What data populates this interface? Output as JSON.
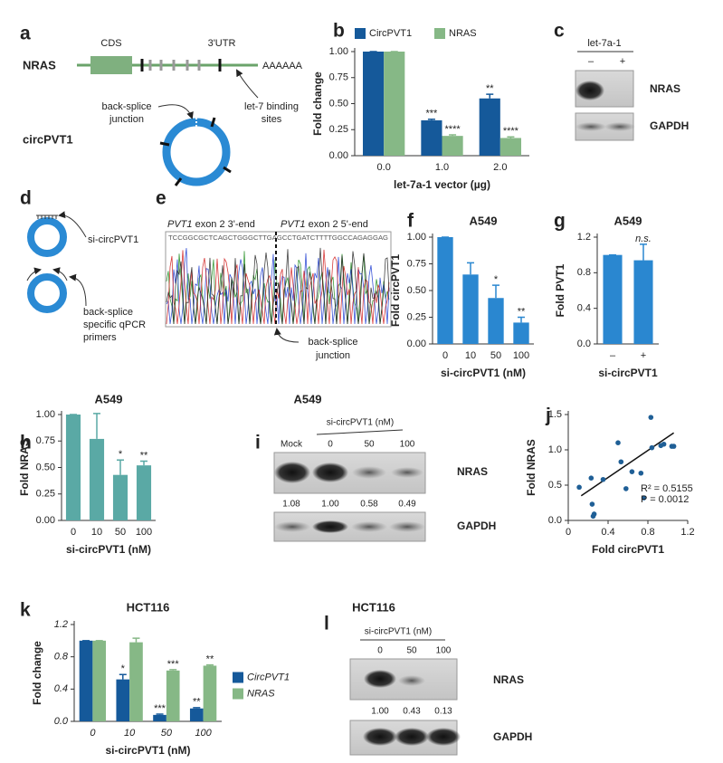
{
  "panels": {
    "a": {
      "label": "a",
      "gene": "NRAS",
      "cds": "CDS",
      "utr": "3'UTR",
      "polya": "AAAAAA",
      "circ": "circPVT1",
      "junction": [
        "back-splice",
        "junction"
      ],
      "sites": [
        "let-7 binding",
        "sites"
      ]
    },
    "c": {
      "label": "c",
      "treatment": "let-7a-1",
      "lanes": [
        "–",
        "+"
      ],
      "bands": [
        "NRAS",
        "GAPDH"
      ]
    },
    "d": {
      "label": "d",
      "sirna": "si-circPVT1",
      "primers": [
        "back-splice",
        "specific qPCR",
        "primers"
      ]
    },
    "e": {
      "label": "e",
      "left": [
        "PVT1",
        " exon 2 3'-end"
      ],
      "right": [
        "PVT1",
        " exon 2 5'-end"
      ],
      "sequence": "TCCGGCGCTCAGCTGGGCTTGAGCCTGATCTTTTGGCCAGAGGAG",
      "junction": [
        "back-splice",
        "junction"
      ]
    },
    "i": {
      "label": "i",
      "title": "A549",
      "treatment": "si-circPVT1 (nM)",
      "lanes": [
        "Mock",
        "0",
        "50",
        "100"
      ],
      "bands": [
        "NRAS",
        "GAPDH"
      ],
      "quant": [
        "1.08",
        "1.00",
        "0.58",
        "0.49"
      ]
    },
    "l": {
      "label": "l",
      "title": "HCT116",
      "treatment": "si-circPVT1 (nM)",
      "lanes": [
        "0",
        "50",
        "100"
      ],
      "bands": [
        "NRAS",
        "GAPDH"
      ],
      "quant": [
        "1.00",
        "0.43",
        "0.13"
      ]
    }
  },
  "chart_data": [
    {
      "type": "bar",
      "label": "b",
      "y_label": "Fold change",
      "x_label": "let-7a-1 vector (µg)",
      "legend": "top",
      "categories": [
        "0.0",
        "1.0",
        "2.0"
      ],
      "series": [
        {
          "name": "CircPVT1",
          "color": "#15599a",
          "values": [
            1,
            0.34,
            0.55
          ],
          "errors": [
            0,
            0.01,
            0.04
          ],
          "annotations": [
            null,
            "***",
            "**"
          ]
        },
        {
          "name": "NRAS",
          "color": "#86b886",
          "values": [
            1,
            0.19,
            0.17
          ],
          "errors": [
            0,
            0.01,
            0.01
          ],
          "annotations": [
            null,
            "****",
            "****"
          ]
        }
      ],
      "ylim": [
        0,
        1
      ],
      "yticks": [
        {
          "value": 0,
          "label": "0.00"
        },
        0.25,
        {
          "value": 0.5,
          "label": "0.50"
        },
        0.75,
        {
          "value": 1,
          "label": "1.00"
        }
      ]
    },
    {
      "type": "bar",
      "label": "f",
      "title": "A549",
      "y_label": "Fold circPVT1",
      "x_label": "si-circPVT1 (nM)",
      "color": "#2a87d0",
      "categories": [
        "0",
        "10",
        "50",
        "100"
      ],
      "values": [
        1,
        0.65,
        0.43,
        0.2
      ],
      "errors": [
        0,
        0.11,
        0.12,
        0.05
      ],
      "annotations": [
        null,
        null,
        "*",
        "**"
      ],
      "ylim": [
        0,
        1
      ],
      "yticks": [
        {
          "value": 0,
          "label": "0.00"
        },
        0.25,
        {
          "value": 0.5,
          "label": "0.50"
        },
        0.75,
        {
          "value": 1,
          "label": "1.00"
        }
      ]
    },
    {
      "type": "bar",
      "label": "g",
      "title": "A549",
      "y_label": "Fold PVT1",
      "x_label": "si-circPVT1",
      "color": "#2a87d0",
      "categories": [
        "–",
        "+"
      ],
      "values": [
        1,
        0.94
      ],
      "errors": [
        0,
        0.18
      ],
      "annotations": [
        null,
        "n.s."
      ],
      "ylim": [
        0,
        1.2
      ],
      "yticks": [
        {
          "value": 0,
          "label": "0.0"
        },
        0.4,
        0.8,
        1.2
      ]
    },
    {
      "type": "bar",
      "label": "h",
      "title": "A549",
      "y_label": "Fold NRAS",
      "x_label": "si-circPVT1 (nM)",
      "color": "#5aa9a5",
      "categories": [
        "0",
        "10",
        "50",
        "100"
      ],
      "values": [
        1,
        0.77,
        0.43,
        0.52
      ],
      "errors": [
        0,
        0.24,
        0.14,
        0.04
      ],
      "annotations": [
        null,
        null,
        "*",
        "**"
      ],
      "ylim": [
        0,
        1
      ],
      "yticks": [
        {
          "value": 0,
          "label": "0.00"
        },
        0.25,
        {
          "value": 0.5,
          "label": "0.50"
        },
        0.75,
        {
          "value": 1,
          "label": "1.00"
        }
      ]
    },
    {
      "type": "scatter",
      "label": "j",
      "y_label": "Fold NRAS",
      "x_label": "Fold circPVT1",
      "color": "#1f5f96",
      "x": [
        0.11,
        0.23,
        0.24,
        0.26,
        0.25,
        0.35,
        0.5,
        0.53,
        0.58,
        0.64,
        0.73,
        0.76,
        0.83,
        0.84,
        0.93,
        0.96,
        1.04,
        1.06
      ],
      "y": [
        0.47,
        0.6,
        0.23,
        0.09,
        0.06,
        0.58,
        1.1,
        0.83,
        0.45,
        0.69,
        0.67,
        0.32,
        1.46,
        1.03,
        1.06,
        1.08,
        1.05,
        1.05
      ],
      "trendline": {
        "x": [
          0.13,
          1.06
        ],
        "y": [
          0.35,
          1.24
        ]
      },
      "stats": [
        "R² = 0.5155",
        "P = 0.0012"
      ],
      "xlim": [
        0,
        1.2
      ],
      "xticks": [
        0,
        0.4,
        0.8,
        1.2
      ],
      "ylim": [
        0,
        1.5
      ],
      "yticks": [
        {
          "value": 0,
          "label": "0.0"
        },
        0.5,
        {
          "value": 1,
          "label": "1.0"
        },
        1.5
      ]
    },
    {
      "type": "bar",
      "label": "k",
      "title": "HCT116",
      "y_label": "Fold change",
      "x_label": "si-circPVT1 (nM)",
      "legend": "right",
      "italic_labels": true,
      "categories": [
        "0",
        "10",
        "50",
        "100"
      ],
      "series": [
        {
          "name": "CircPVT1",
          "color": "#15599a",
          "values": [
            1,
            0.52,
            0.08,
            0.16
          ],
          "errors": [
            0,
            0.06,
            0.01,
            0.01
          ],
          "annotations": [
            null,
            "*",
            "***",
            "**"
          ]
        },
        {
          "name": "NRAS",
          "color": "#86b886",
          "values": [
            1,
            0.98,
            0.63,
            0.69
          ],
          "errors": [
            0,
            0.05,
            0.01,
            0.01
          ],
          "annotations": [
            null,
            null,
            "***",
            "**"
          ]
        }
      ],
      "ylim": [
        0,
        1.2
      ],
      "yticks": [
        {
          "value": 0,
          "label": "0.0"
        },
        0.4,
        0.8,
        1.2
      ]
    }
  ]
}
